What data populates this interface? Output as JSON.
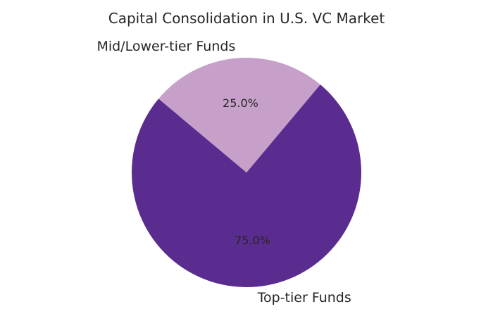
{
  "chart_data": {
    "type": "pie",
    "title": "Capital Consolidation in U.S. VC Market",
    "categories": [
      "Top-tier Funds",
      "Mid/Lower-tier Funds"
    ],
    "values": [
      75.0,
      25.0
    ],
    "percent_labels": [
      "75.0%",
      "25.0%"
    ],
    "colors": [
      "#5b2c8f",
      "#c7a0c9"
    ],
    "start_angle_deg": 140,
    "direction": "counterclockwise",
    "legend": "none"
  }
}
